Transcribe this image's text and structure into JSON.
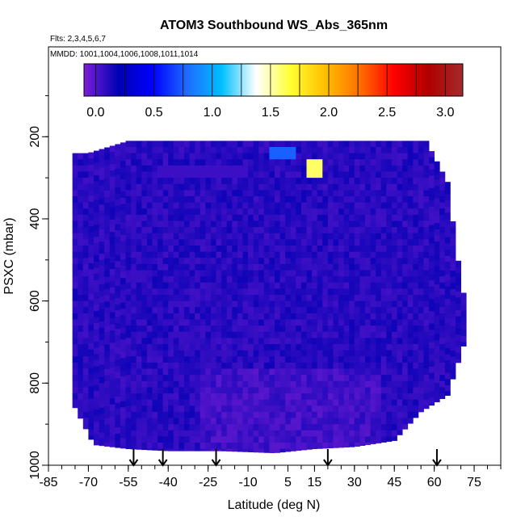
{
  "chart_data": {
    "type": "heatmap",
    "title": "ATOM3 Southbound WS_Abs_365nm",
    "note_flights": "Flts: 2,3,4,5,6,7",
    "note_dates": "MMDD: 1001,1004,1006,1008,1011,1014",
    "xlabel": "Latitude (deg N)",
    "ylabel": "PSXC (mbar)",
    "xlim": [
      -85,
      85
    ],
    "ylim": [
      1000,
      0
    ],
    "x_ticks": [
      "-85",
      "-70",
      "-55",
      "-40",
      "-25",
      "-10",
      "5",
      "15",
      "30",
      "45",
      "60",
      "75"
    ],
    "y_ticks": [
      "200",
      "400",
      "600",
      "800",
      "1000"
    ],
    "colorbar": {
      "range": [
        -0.1,
        3.15
      ],
      "ticks": [
        "0.0",
        "0.5",
        "1.0",
        "1.5",
        "2.0",
        "2.5",
        "3.0"
      ],
      "colors": [
        "#7a1fd6",
        "#0000b3",
        "#0000ff",
        "#1e6cff",
        "#00bfff",
        "#ffffff",
        "#ffff33",
        "#ffbf00",
        "#ff7000",
        "#ff0000",
        "#b00000",
        "#a52a2a"
      ]
    },
    "arrow_latitudes": [
      -53,
      -42,
      -22,
      20,
      61
    ],
    "curtain_extent": {
      "top_pressure_by_lat": [
        [
          -70,
          240
        ],
        [
          -55,
          210
        ],
        [
          -40,
          210
        ],
        [
          -20,
          210
        ],
        [
          0,
          210
        ],
        [
          20,
          210
        ],
        [
          40,
          210
        ],
        [
          57,
          210
        ],
        [
          65,
          310
        ],
        [
          70,
          550
        ],
        [
          72,
          610
        ]
      ],
      "bottom_pressure_by_lat": [
        [
          -75,
          860
        ],
        [
          -68,
          950
        ],
        [
          -55,
          960
        ],
        [
          -40,
          965
        ],
        [
          -20,
          965
        ],
        [
          0,
          970
        ],
        [
          15,
          960
        ],
        [
          30,
          955
        ],
        [
          45,
          940
        ],
        [
          55,
          870
        ],
        [
          65,
          830
        ],
        [
          72,
          690
        ]
      ]
    },
    "features": [
      {
        "lat_range": [
          12,
          18
        ],
        "p_range": [
          255,
          290
        ],
        "value": 1.6
      },
      {
        "lat_range": [
          -3,
          8
        ],
        "p_range": [
          225,
          250
        ],
        "value": 0.75
      },
      {
        "lat_range": [
          -45,
          -10
        ],
        "p_range": [
          265,
          300
        ],
        "value": 0.05
      }
    ],
    "background_value": 0.1
  }
}
